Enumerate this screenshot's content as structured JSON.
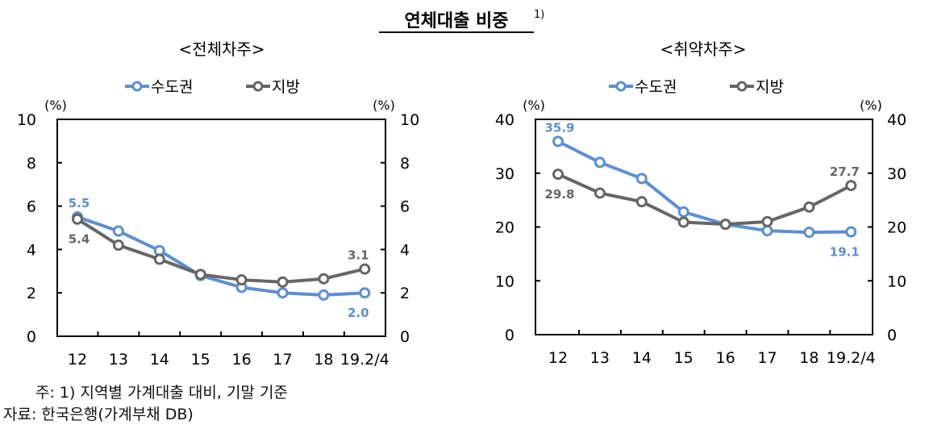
{
  "title": "연체대출 비중",
  "title_sup": "1)",
  "colors": {
    "capital": "#5B8FD4",
    "region": "#666666"
  },
  "legend": [
    "수도권",
    "지방"
  ],
  "notes": [
    "주: 1) 지역별 가계대출 대비, 기말 기준",
    "자료: 한국은행(가계부채 DB)"
  ],
  "chart_data": [
    {
      "type": "line",
      "subtitle": "<전체차주>",
      "unit_left": "(%)",
      "unit_right": "(%)",
      "categories": [
        "12",
        "13",
        "14",
        "15",
        "16",
        "17",
        "18",
        "19.2/4"
      ],
      "ylim": [
        0,
        10
      ],
      "yticks": [
        0,
        2,
        4,
        6,
        8,
        10
      ],
      "legend_position": "top",
      "series": [
        {
          "name": "수도권",
          "values": [
            5.5,
            4.85,
            3.95,
            2.8,
            2.25,
            2.0,
            1.9,
            2.0
          ],
          "labels": {
            "0": "5.5",
            "7": "2.0"
          }
        },
        {
          "name": "지방",
          "values": [
            5.4,
            4.2,
            3.55,
            2.85,
            2.6,
            2.5,
            2.65,
            3.1
          ],
          "labels": {
            "0": "5.4",
            "7": "3.1"
          }
        }
      ]
    },
    {
      "type": "line",
      "subtitle": "<취약차주>",
      "unit_left": "(%)",
      "unit_right": "(%)",
      "categories": [
        "12",
        "13",
        "14",
        "15",
        "16",
        "17",
        "18",
        "19.2/4"
      ],
      "ylim": [
        0,
        40
      ],
      "yticks": [
        0,
        10,
        20,
        30,
        40
      ],
      "legend_position": "top",
      "series": [
        {
          "name": "수도권",
          "values": [
            35.9,
            32.0,
            29.0,
            22.8,
            20.5,
            19.3,
            19.0,
            19.1
          ],
          "labels": {
            "0": "35.9",
            "7": "19.1"
          }
        },
        {
          "name": "지방",
          "values": [
            29.8,
            26.3,
            24.7,
            20.9,
            20.5,
            21.0,
            23.7,
            27.7
          ],
          "labels": {
            "0": "29.8",
            "7": "27.7"
          }
        }
      ]
    }
  ]
}
